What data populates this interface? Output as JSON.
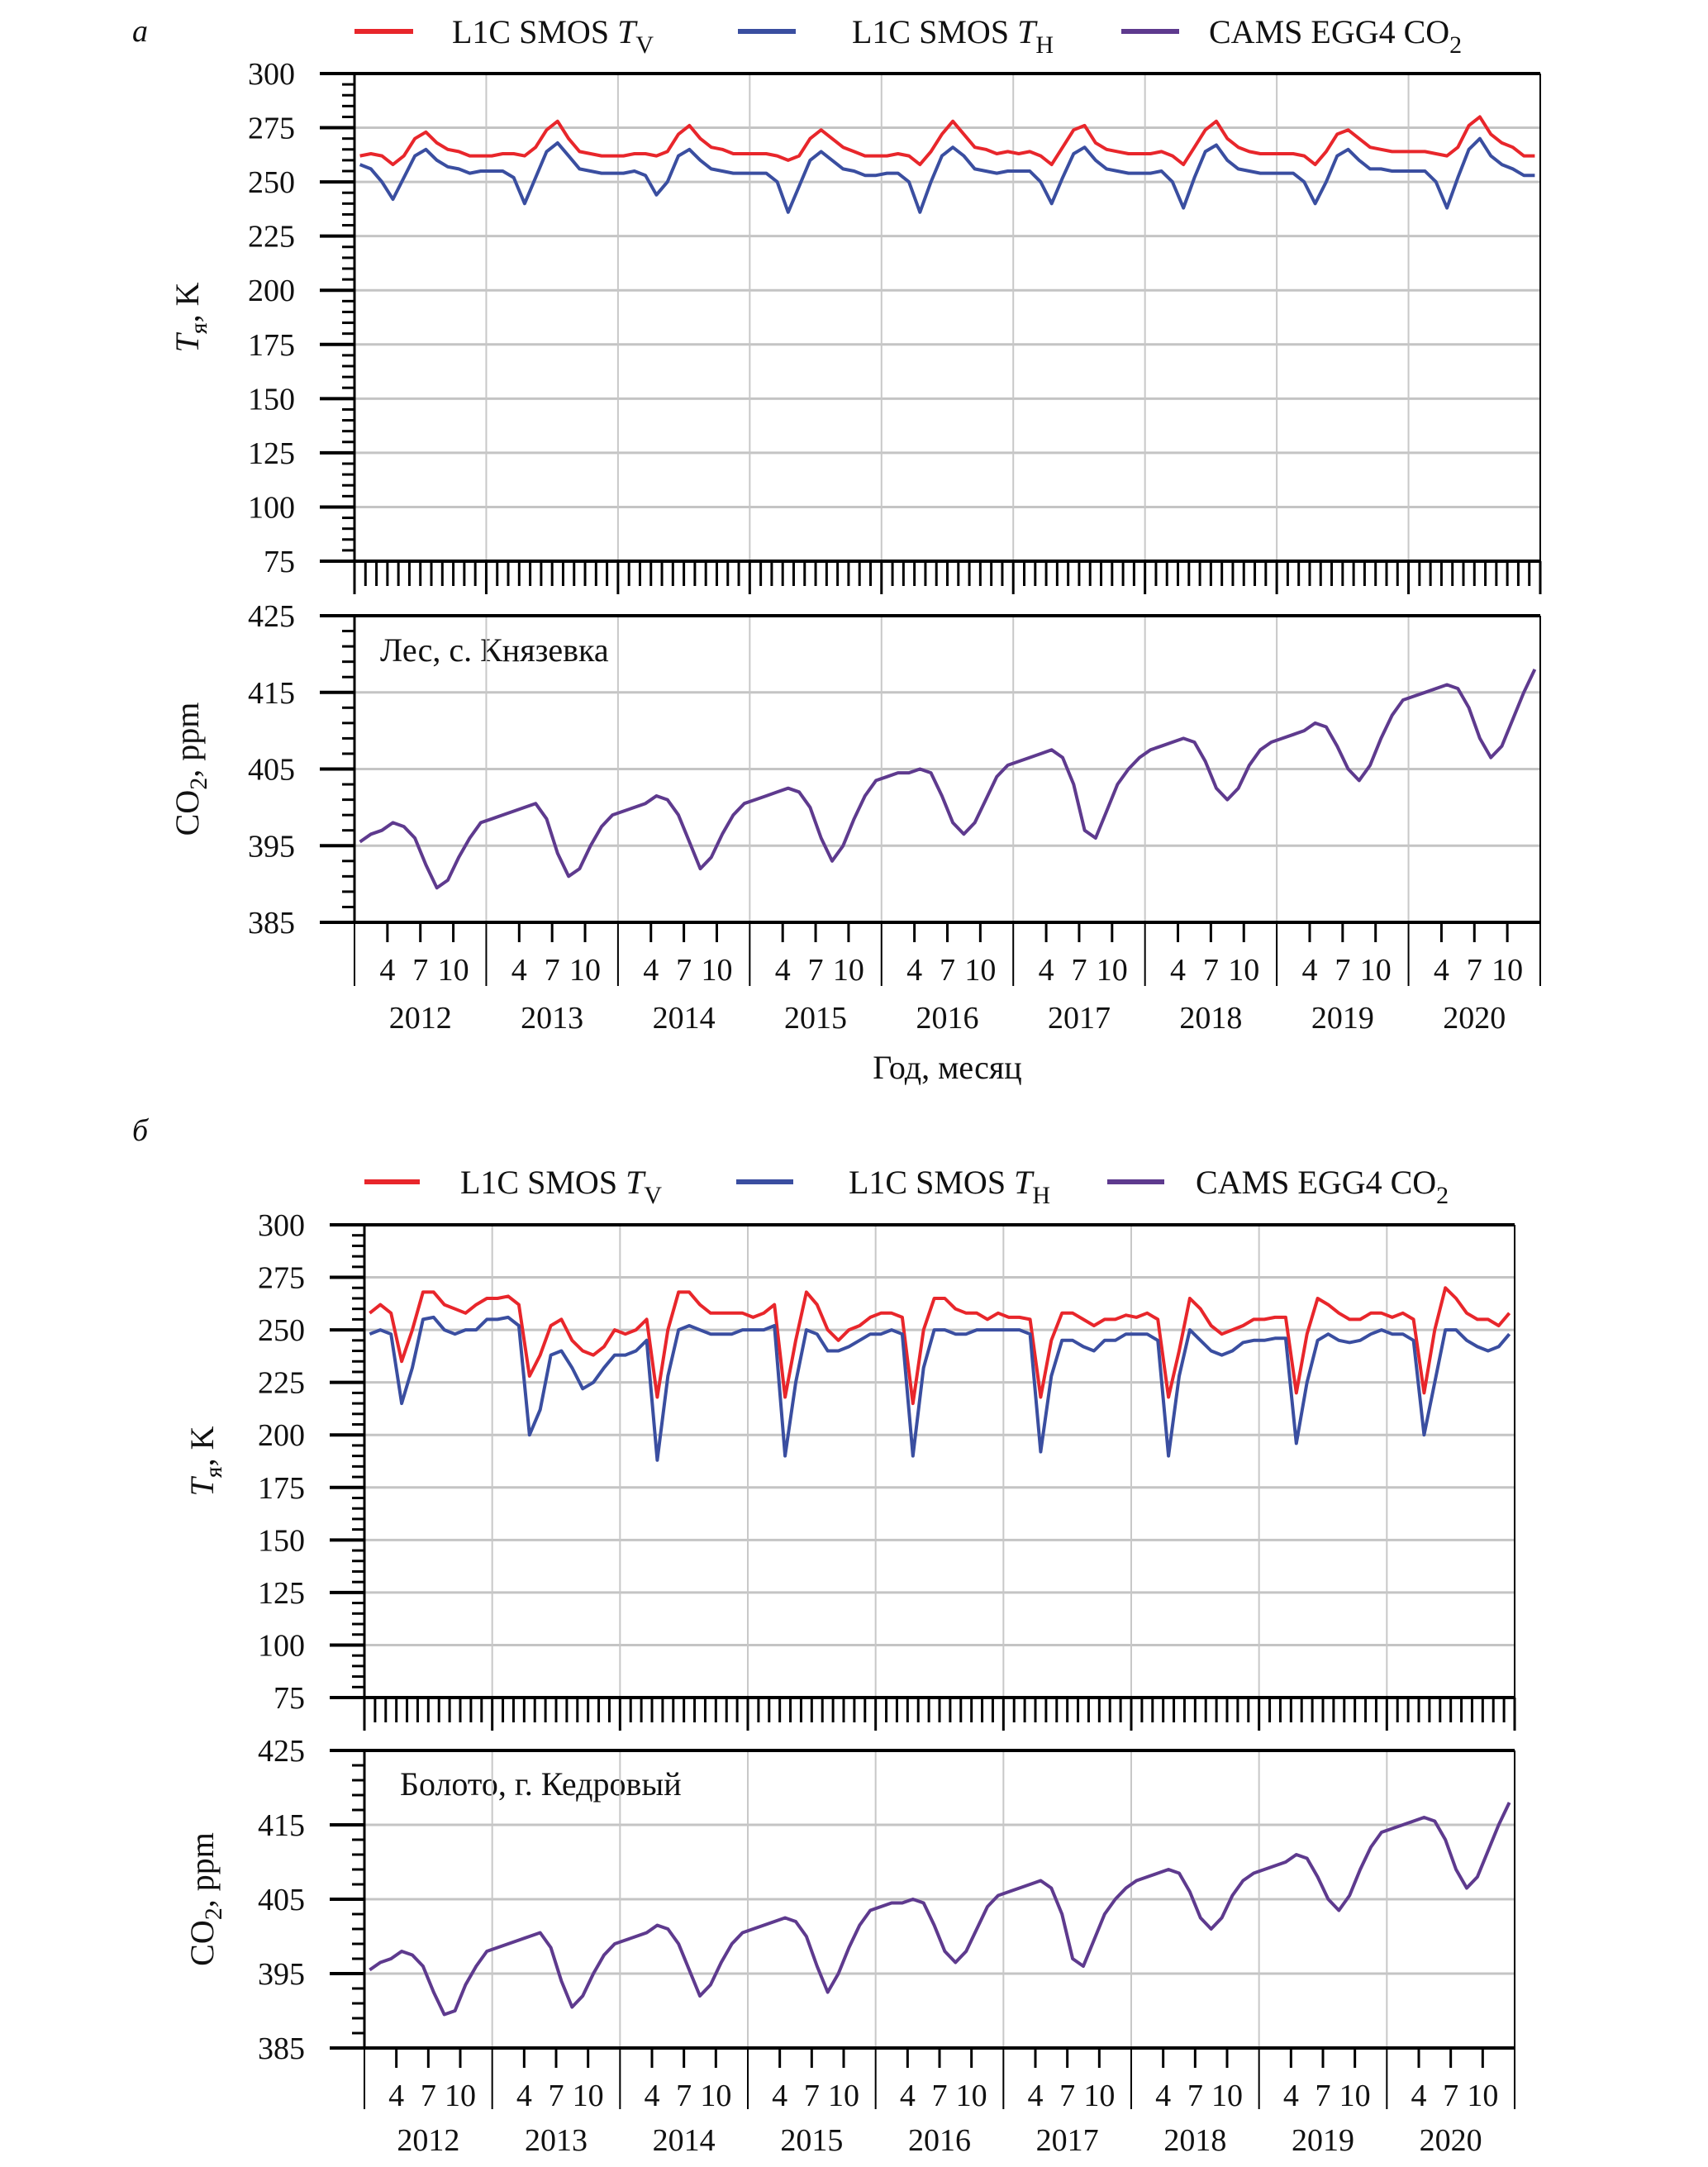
{
  "panels": [
    {
      "label": "а",
      "legend": [
        {
          "text": "L1C SMOS ",
          "var": "T",
          "sub": "V",
          "color": "#e8262b"
        },
        {
          "text": "L1C SMOS ",
          "var": "T",
          "sub": "H",
          "color": "#3a4ea0"
        },
        {
          "text": "CAMS EGG4 CO",
          "var": "",
          "sub": "2",
          "color": "#5e3a8e"
        }
      ],
      "site_label": "Лес, с. Князевка",
      "xlabel": "Год, месяц"
    },
    {
      "label": "б",
      "legend": [
        {
          "text": "L1C SMOS ",
          "var": "T",
          "sub": "V",
          "color": "#e8262b"
        },
        {
          "text": "L1C SMOS ",
          "var": "T",
          "sub": "H",
          "color": "#3a4ea0"
        },
        {
          "text": "CAMS EGG4 CO",
          "var": "",
          "sub": "2",
          "color": "#5e3a8e"
        }
      ],
      "site_label": "Болото, г. Кедровый",
      "xlabel": ""
    }
  ],
  "chart_data": [
    {
      "type": "line",
      "panel": "а",
      "ylabel": {
        "var": "T",
        "sub": "я",
        "rest": ", K"
      },
      "ylim": [
        75,
        300
      ],
      "yticks": [
        75,
        100,
        125,
        150,
        175,
        200,
        225,
        250,
        275,
        300
      ],
      "grid": true,
      "years": [
        2012,
        2013,
        2014,
        2015,
        2016,
        2017,
        2018,
        2019,
        2020
      ],
      "series": [
        {
          "name": "L1C SMOS TV",
          "color": "#e8262b",
          "monthly": [
            [
              262,
              263,
              262,
              258,
              262,
              270,
              273,
              268,
              265,
              264,
              262,
              262
            ],
            [
              262,
              263,
              263,
              262,
              266,
              274,
              278,
              270,
              264,
              263,
              262,
              262
            ],
            [
              262,
              263,
              263,
              262,
              264,
              272,
              276,
              270,
              266,
              265,
              263,
              263
            ],
            [
              263,
              263,
              262,
              260,
              262,
              270,
              274,
              270,
              266,
              264,
              262,
              262
            ],
            [
              262,
              263,
              262,
              258,
              264,
              272,
              278,
              272,
              266,
              265,
              263,
              264
            ],
            [
              263,
              264,
              262,
              258,
              266,
              274,
              276,
              268,
              265,
              264,
              263,
              263
            ],
            [
              263,
              264,
              262,
              258,
              266,
              274,
              278,
              270,
              266,
              264,
              263,
              263
            ],
            [
              263,
              263,
              262,
              258,
              264,
              272,
              274,
              270,
              266,
              265,
              264,
              264
            ],
            [
              264,
              264,
              263,
              262,
              266,
              276,
              280,
              272,
              268,
              266,
              262,
              262
            ]
          ]
        },
        {
          "name": "L1C SMOS TH",
          "color": "#3a4ea0",
          "monthly": [
            [
              258,
              256,
              250,
              242,
              252,
              262,
              265,
              260,
              257,
              256,
              254,
              255
            ],
            [
              255,
              255,
              252,
              240,
              252,
              264,
              268,
              262,
              256,
              255,
              254,
              254
            ],
            [
              254,
              255,
              253,
              244,
              250,
              262,
              265,
              260,
              256,
              255,
              254,
              254
            ],
            [
              254,
              254,
              250,
              236,
              248,
              260,
              264,
              260,
              256,
              255,
              253,
              253
            ],
            [
              254,
              254,
              250,
              236,
              250,
              262,
              266,
              262,
              256,
              255,
              254,
              255
            ],
            [
              255,
              255,
              250,
              240,
              252,
              263,
              266,
              260,
              256,
              255,
              254,
              254
            ],
            [
              254,
              255,
              250,
              238,
              252,
              264,
              267,
              260,
              256,
              255,
              254,
              254
            ],
            [
              254,
              254,
              250,
              240,
              250,
              262,
              265,
              260,
              256,
              256,
              255,
              255
            ],
            [
              255,
              255,
              250,
              238,
              252,
              265,
              270,
              262,
              258,
              256,
              253,
              253
            ]
          ]
        }
      ]
    },
    {
      "type": "line",
      "panel": "а",
      "ylabel": {
        "var": "",
        "sub": "2",
        "rest": ", ppm",
        "pre": "CO"
      },
      "ylim": [
        385,
        425
      ],
      "yticks": [
        385,
        395,
        405,
        415,
        425
      ],
      "grid": true,
      "years": [
        2012,
        2013,
        2014,
        2015,
        2016,
        2017,
        2018,
        2019,
        2020
      ],
      "month_ticks": [
        "4",
        "7",
        "10"
      ],
      "series": [
        {
          "name": "CAMS EGG4 CO2",
          "color": "#5e3a8e",
          "monthly": [
            [
              395.5,
              396.5,
              397,
              398,
              397.5,
              396,
              392.5,
              389.5,
              390.5,
              393.5,
              396,
              398
            ],
            [
              398.5,
              399,
              399.5,
              400,
              400.5,
              398.5,
              394,
              391,
              392,
              395,
              397.5,
              399
            ],
            [
              399.5,
              400,
              400.5,
              401.5,
              401,
              399,
              395.5,
              392,
              393.5,
              396.5,
              399,
              400.5
            ],
            [
              401,
              401.5,
              402,
              402.5,
              402,
              400,
              396,
              393,
              395,
              398.5,
              401.5,
              403.5
            ],
            [
              404,
              404.5,
              404.5,
              405,
              404.5,
              401.5,
              398,
              396.5,
              398,
              401,
              404,
              405.5
            ],
            [
              406,
              406.5,
              407,
              407.5,
              406.5,
              403,
              397,
              396,
              399.5,
              403,
              405,
              406.5
            ],
            [
              407.5,
              408,
              408.5,
              409,
              408.5,
              406,
              402.5,
              401,
              402.5,
              405.5,
              407.5,
              408.5
            ],
            [
              409,
              409.5,
              410,
              411,
              410.5,
              408,
              405,
              403.5,
              405.5,
              409,
              412,
              414
            ],
            [
              414.5,
              415,
              415.5,
              416,
              415.5,
              413,
              409,
              406.5,
              408,
              411.5,
              415,
              418
            ]
          ]
        }
      ]
    },
    {
      "type": "line",
      "panel": "б",
      "ylabel": {
        "var": "T",
        "sub": "я",
        "rest": ", K"
      },
      "ylim": [
        75,
        300
      ],
      "yticks": [
        75,
        100,
        125,
        150,
        175,
        200,
        225,
        250,
        275,
        300
      ],
      "grid": true,
      "years": [
        2012,
        2013,
        2014,
        2015,
        2016,
        2017,
        2018,
        2019,
        2020
      ],
      "series": [
        {
          "name": "L1C SMOS TV",
          "color": "#e8262b",
          "monthly": [
            [
              258,
              262,
              258,
              235,
              250,
              268,
              268,
              262,
              260,
              258,
              262,
              265
            ],
            [
              265,
              266,
              262,
              228,
              238,
              252,
              255,
              245,
              240,
              238,
              242,
              250
            ],
            [
              248,
              250,
              255,
              218,
              250,
              268,
              268,
              262,
              258,
              258,
              258,
              258
            ],
            [
              256,
              258,
              262,
              218,
              245,
              268,
              262,
              250,
              245,
              250,
              252,
              256
            ],
            [
              258,
              258,
              256,
              215,
              250,
              265,
              265,
              260,
              258,
              258,
              255,
              258
            ],
            [
              256,
              256,
              255,
              218,
              245,
              258,
              258,
              255,
              252,
              255,
              255,
              257
            ],
            [
              256,
              258,
              255,
              218,
              240,
              265,
              260,
              252,
              248,
              250,
              252,
              255
            ],
            [
              255,
              256,
              256,
              220,
              248,
              265,
              262,
              258,
              255,
              255,
              258,
              258
            ],
            [
              256,
              258,
              255,
              220,
              250,
              270,
              265,
              258,
              255,
              255,
              252,
              258
            ]
          ]
        },
        {
          "name": "L1C SMOS TH",
          "color": "#3a4ea0",
          "monthly": [
            [
              248,
              250,
              248,
              215,
              232,
              255,
              256,
              250,
              248,
              250,
              250,
              255
            ],
            [
              255,
              256,
              252,
              200,
              212,
              238,
              240,
              232,
              222,
              225,
              232,
              238
            ],
            [
              238,
              240,
              245,
              188,
              228,
              250,
              252,
              250,
              248,
              248,
              248,
              250
            ],
            [
              250,
              250,
              252,
              190,
              225,
              250,
              248,
              240,
              240,
              242,
              245,
              248
            ],
            [
              248,
              250,
              248,
              190,
              232,
              250,
              250,
              248,
              248,
              250,
              250,
              250
            ],
            [
              250,
              250,
              248,
              192,
              228,
              245,
              245,
              242,
              240,
              245,
              245,
              248
            ],
            [
              248,
              248,
              245,
              190,
              228,
              250,
              245,
              240,
              238,
              240,
              244,
              245
            ],
            [
              245,
              246,
              246,
              196,
              225,
              245,
              248,
              245,
              244,
              245,
              248,
              250
            ],
            [
              248,
              248,
              245,
              200,
              225,
              250,
              250,
              245,
              242,
              240,
              242,
              248
            ]
          ]
        }
      ]
    },
    {
      "type": "line",
      "panel": "б",
      "ylabel": {
        "var": "",
        "sub": "2",
        "rest": ", ppm",
        "pre": "CO"
      },
      "ylim": [
        385,
        425
      ],
      "yticks": [
        385,
        395,
        405,
        415,
        425
      ],
      "grid": true,
      "years": [
        2012,
        2013,
        2014,
        2015,
        2016,
        2017,
        2018,
        2019,
        2020
      ],
      "month_ticks": [
        "4",
        "7",
        "10"
      ],
      "series": [
        {
          "name": "CAMS EGG4 CO2",
          "color": "#5e3a8e",
          "monthly": [
            [
              395.5,
              396.5,
              397,
              398,
              397.5,
              396,
              392.5,
              389.5,
              390,
              393.5,
              396,
              398
            ],
            [
              398.5,
              399,
              399.5,
              400,
              400.5,
              398.5,
              394,
              390.5,
              392,
              395,
              397.5,
              399
            ],
            [
              399.5,
              400,
              400.5,
              401.5,
              401,
              399,
              395.5,
              392,
              393.5,
              396.5,
              399,
              400.5
            ],
            [
              401,
              401.5,
              402,
              402.5,
              402,
              400,
              396,
              392.5,
              395,
              398.5,
              401.5,
              403.5
            ],
            [
              404,
              404.5,
              404.5,
              405,
              404.5,
              401.5,
              398,
              396.5,
              398,
              401,
              404,
              405.5
            ],
            [
              406,
              406.5,
              407,
              407.5,
              406.5,
              403,
              397,
              396,
              399.5,
              403,
              405,
              406.5
            ],
            [
              407.5,
              408,
              408.5,
              409,
              408.5,
              406,
              402.5,
              401,
              402.5,
              405.5,
              407.5,
              408.5
            ],
            [
              409,
              409.5,
              410,
              411,
              410.5,
              408,
              405,
              403.5,
              405.5,
              409,
              412,
              414
            ],
            [
              414.5,
              415,
              415.5,
              416,
              415.5,
              413,
              409,
              406.5,
              408,
              411.5,
              415,
              418
            ]
          ]
        }
      ]
    }
  ]
}
